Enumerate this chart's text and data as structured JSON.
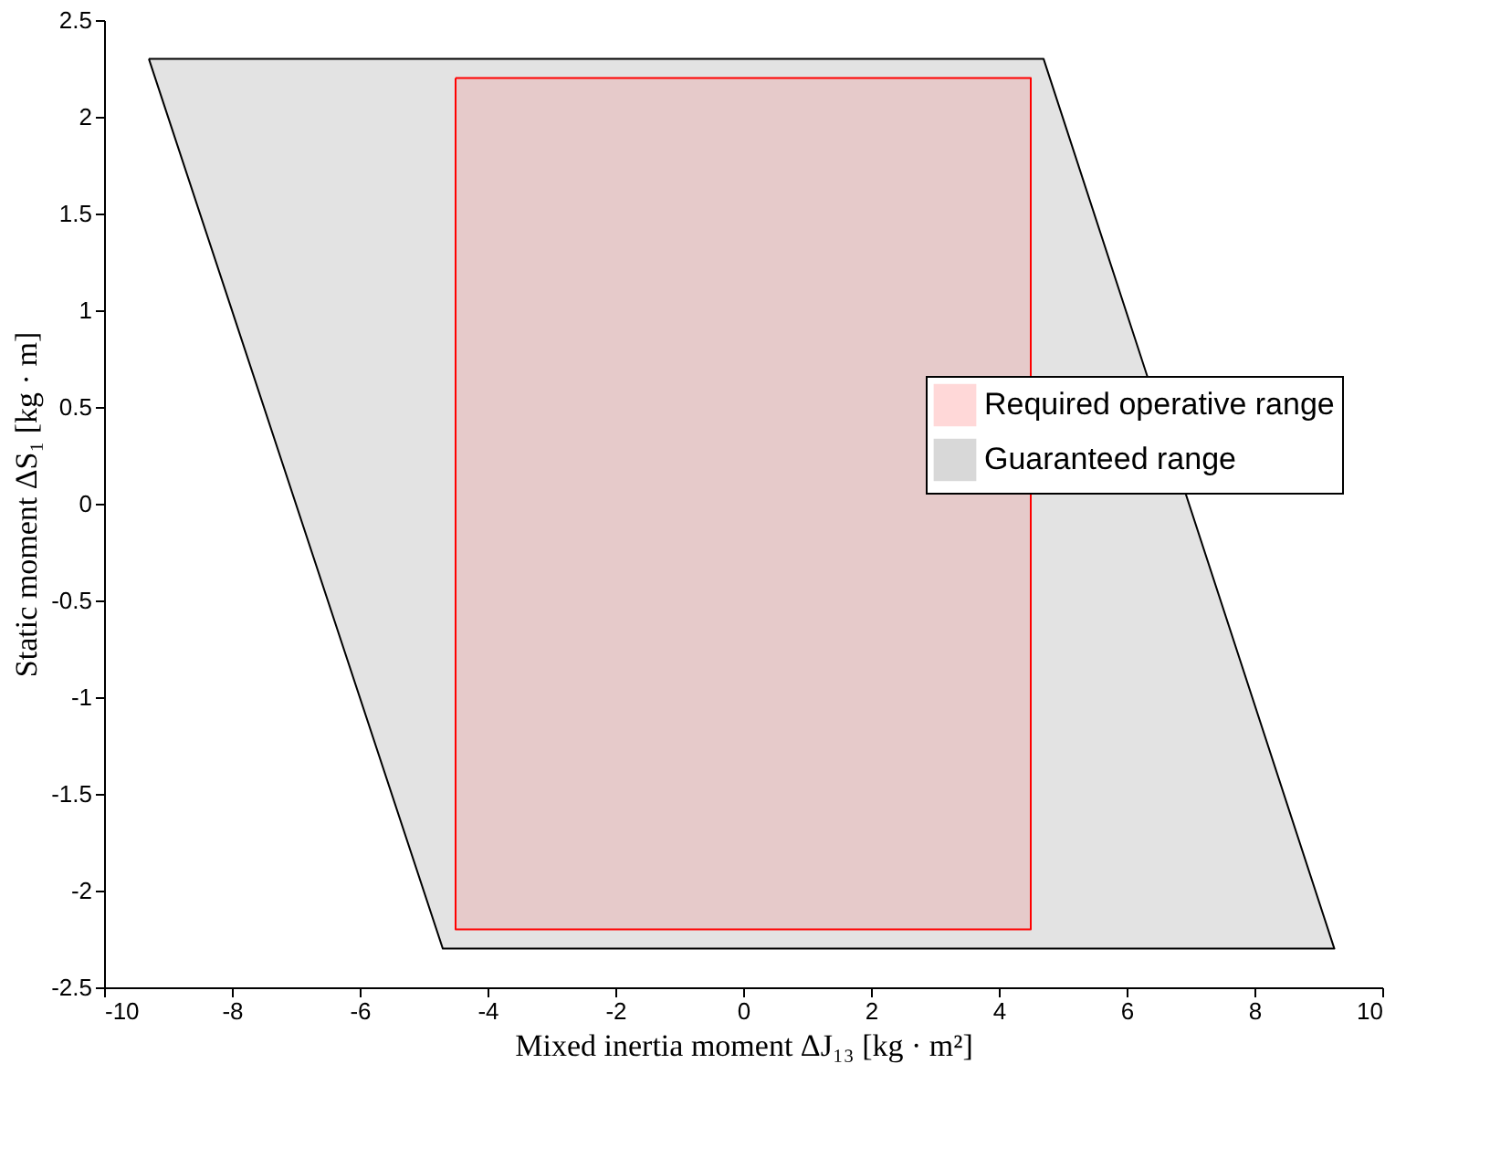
{
  "chart_data": {
    "type": "area",
    "xlabel": "Mixed inertia moment ΔJ₁₃  [kg · m²]",
    "ylabel": "Static moment ΔS₁  [kg · m]",
    "series": [
      {
        "name": "Guaranteed range",
        "color": "#000000",
        "x": [
          -9.3,
          4.7,
          9.25,
          -4.7
        ],
        "values": [
          2.3,
          2.3,
          -2.3,
          -2.3
        ]
      },
      {
        "name": "Required operative range",
        "color": "#ff0000",
        "x": [
          -4.5,
          4.5,
          4.5,
          -4.5
        ],
        "values": [
          2.2,
          2.2,
          -2.2,
          -2.2
        ]
      }
    ],
    "xlim": [
      -10,
      10
    ],
    "xticks": [
      -10,
      -8,
      -6,
      -4,
      -2,
      0,
      2,
      4,
      6,
      8,
      10
    ],
    "ylim": [
      -2.5,
      2.5
    ],
    "yticks": [
      -2.5,
      -2,
      -1.5,
      -1,
      -0.5,
      0,
      0.5,
      1,
      1.5,
      2,
      2.5
    ],
    "grid": false,
    "legend": "right"
  }
}
